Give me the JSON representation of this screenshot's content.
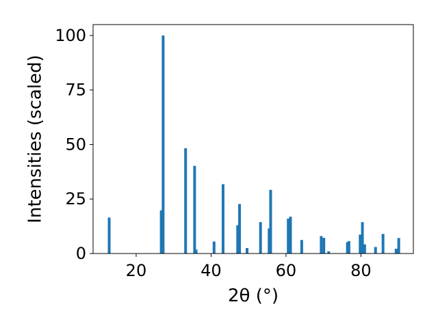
{
  "chart_data": {
    "type": "bar",
    "xlabel": "2θ (°)",
    "ylabel": "Intensities (scaled)",
    "xlim": [
      8.5,
      94.0
    ],
    "ylim": [
      0,
      105
    ],
    "x_ticks": [
      20,
      40,
      60,
      80
    ],
    "y_ticks": [
      0,
      25,
      50,
      75,
      100
    ],
    "bar_color": "#1f77b4",
    "grid": false,
    "legend": "none",
    "series": [
      {
        "x": [
          12.8,
          26.7,
          27.2,
          33.2,
          35.6,
          36.0,
          40.8,
          43.2,
          47.1,
          47.6,
          49.6,
          53.2,
          55.5,
          55.9,
          60.6,
          61.2,
          64.2,
          69.4,
          70.1,
          71.4,
          76.4,
          76.8,
          79.8,
          80.4,
          81.0,
          83.9,
          85.9,
          89.4,
          90.1
        ],
        "y": [
          16.5,
          19.8,
          100.0,
          48.3,
          40.2,
          1.8,
          5.5,
          31.8,
          13.0,
          22.7,
          2.5,
          14.4,
          11.5,
          29.2,
          16.0,
          16.9,
          6.2,
          8.0,
          7.2,
          1.0,
          5.2,
          5.7,
          8.7,
          14.4,
          4.2,
          3.0,
          9.0,
          2.2,
          7.1
        ]
      }
    ]
  }
}
